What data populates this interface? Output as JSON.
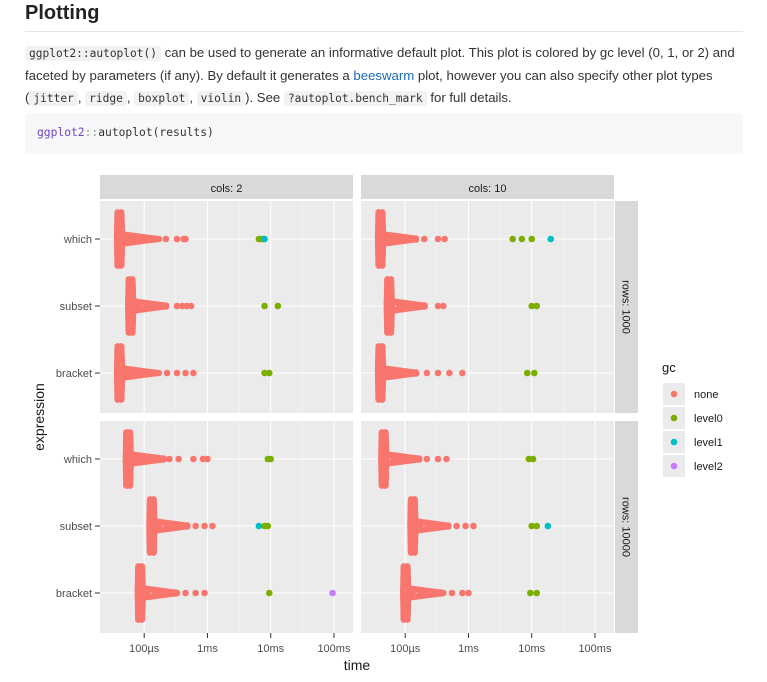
{
  "heading": "Plotting",
  "paragraph": {
    "code_autoplot": "ggplot2::autoplot()",
    "text1": " can be used to generate an informative default plot. This plot is colored by gc level (0, 1, or 2) and faceted by parameters (if any). By default it generates a ",
    "link_beeswarm": "beeswarm",
    "text2": " plot, however you can also specify other plot types (",
    "code_jitter": "jitter",
    "comma1": ", ",
    "code_ridge": "ridge",
    "comma2": ", ",
    "code_boxplot": "boxplot",
    "comma3": ", ",
    "code_violin": "violin",
    "text3": "). See ",
    "code_help": "?autoplot.bench_mark",
    "text4": " for full details."
  },
  "code_block": {
    "pkg": "ggplot2",
    "sep": "::",
    "call": "autoplot(results)"
  },
  "colors": {
    "none": "#F8766D",
    "level0": "#7CAE00",
    "level1": "#00BFC4",
    "level2": "#C77CFF",
    "panel_bg": "#EBEBEB",
    "strip_bg": "#D9D9D9"
  },
  "chart_data": {
    "type": "scatter",
    "xlabel": "time",
    "ylabel": "expression",
    "x_scale": "log10",
    "x_ticks": [
      "100µs",
      "1ms",
      "10ms",
      "100ms"
    ],
    "xlim": [
      "20µs",
      "200ms"
    ],
    "categories": [
      "which",
      "subset",
      "bracket"
    ],
    "facet_cols": [
      "cols: 2",
      "cols: 10"
    ],
    "facet_rows": [
      "rows: 1000",
      "rows: 10000"
    ],
    "legend": {
      "title": "gc",
      "entries": [
        "none",
        "level0",
        "level1",
        "level2"
      ],
      "position": "right"
    },
    "grid": true,
    "panels": [
      {
        "col": "cols: 2",
        "row": "rows: 1000",
        "series": [
          {
            "expression": "which",
            "gc": "none",
            "median_us": 40,
            "extra_us": [
              55,
              65,
              80,
              100,
              130,
              170,
              220,
              330,
              420,
              450
            ]
          },
          {
            "expression": "which",
            "gc": "level0",
            "extra_us": [
              6500,
              7000,
              7500
            ]
          },
          {
            "expression": "which",
            "gc": "level1",
            "extra_us": [
              8000
            ]
          },
          {
            "expression": "subset",
            "gc": "none",
            "median_us": 60,
            "extra_us": [
              80,
              110,
              150,
              200,
              330,
              400,
              470,
              550
            ]
          },
          {
            "expression": "subset",
            "gc": "level0",
            "extra_us": [
              8000,
              13000
            ]
          },
          {
            "expression": "bracket",
            "gc": "none",
            "median_us": 40,
            "extra_us": [
              55,
              70,
              90,
              120,
              170,
              230,
              330,
              450,
              600
            ]
          },
          {
            "expression": "bracket",
            "gc": "level0",
            "extra_us": [
              8000,
              9500
            ]
          }
        ]
      },
      {
        "col": "cols: 10",
        "row": "rows: 1000",
        "series": [
          {
            "expression": "which",
            "gc": "none",
            "median_us": 40,
            "extra_us": [
              55,
              70,
              100,
              140,
              200,
              330,
              420
            ]
          },
          {
            "expression": "which",
            "gc": "level0",
            "extra_us": [
              5000,
              7000,
              10000
            ]
          },
          {
            "expression": "which",
            "gc": "level1",
            "extra_us": [
              20000
            ]
          },
          {
            "expression": "subset",
            "gc": "none",
            "median_us": 55,
            "extra_us": [
              80,
              110,
              150,
              330,
              400
            ]
          },
          {
            "expression": "subset",
            "gc": "level0",
            "extra_us": [
              10000,
              12000
            ]
          },
          {
            "expression": "bracket",
            "gc": "none",
            "median_us": 40,
            "extra_us": [
              55,
              80,
              110,
              150,
              220,
              330,
              500,
              800
            ]
          },
          {
            "expression": "bracket",
            "gc": "level0",
            "extra_us": [
              8500,
              11000
            ]
          }
        ]
      },
      {
        "col": "cols: 2",
        "row": "rows: 10000",
        "series": [
          {
            "expression": "which",
            "gc": "none",
            "median_us": 55,
            "extra_us": [
              75,
              110,
              150,
              250,
              350,
              600,
              850,
              1000
            ]
          },
          {
            "expression": "which",
            "gc": "level0",
            "extra_us": [
              9000,
              10000
            ]
          },
          {
            "expression": "subset",
            "gc": "none",
            "median_us": 130,
            "extra_us": [
              170,
              230,
              300,
              450,
              650,
              900,
              1200
            ]
          },
          {
            "expression": "subset",
            "gc": "level0",
            "extra_us": [
              8000,
              9000
            ]
          },
          {
            "expression": "subset",
            "gc": "level1",
            "extra_us": [
              6500
            ]
          },
          {
            "expression": "bracket",
            "gc": "none",
            "median_us": 85,
            "extra_us": [
              110,
              160,
              230,
              330,
              450,
              650,
              900
            ]
          },
          {
            "expression": "bracket",
            "gc": "level0",
            "extra_us": [
              9500
            ]
          },
          {
            "expression": "bracket",
            "gc": "level2",
            "extra_us": [
              95000
            ]
          }
        ]
      },
      {
        "col": "cols: 10",
        "row": "rows: 10000",
        "series": [
          {
            "expression": "which",
            "gc": "none",
            "median_us": 45,
            "extra_us": [
              65,
              90,
              120,
              160,
              220,
              330,
              450
            ]
          },
          {
            "expression": "which",
            "gc": "level0",
            "extra_us": [
              9000,
              10500
            ]
          },
          {
            "expression": "subset",
            "gc": "none",
            "median_us": 130,
            "extra_us": [
              170,
              230,
              330,
              450,
              650,
              900,
              1200
            ]
          },
          {
            "expression": "subset",
            "gc": "level0",
            "extra_us": [
              10000,
              12000
            ]
          },
          {
            "expression": "subset",
            "gc": "level1",
            "extra_us": [
              18000
            ]
          },
          {
            "expression": "bracket",
            "gc": "none",
            "median_us": 100,
            "extra_us": [
              130,
              180,
              250,
              400,
              550,
              800,
              1000
            ]
          },
          {
            "expression": "bracket",
            "gc": "level0",
            "extra_us": [
              9500,
              12000
            ]
          }
        ]
      }
    ]
  }
}
